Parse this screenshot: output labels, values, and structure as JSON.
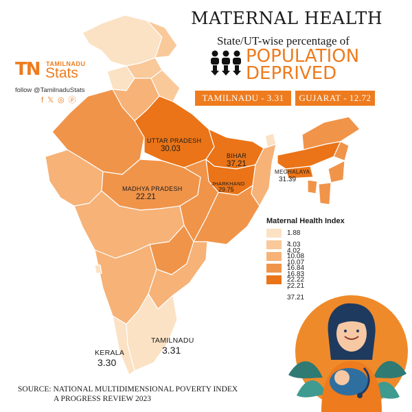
{
  "header": {
    "title": "MATERNAL HEALTH",
    "subtitle": "State/UT-wise percentage of",
    "headline_line1": "POPULATION",
    "headline_line2": "DEPRIVED"
  },
  "highlights": [
    "TAMILNADU - 3.31",
    "GUJARAT - 12.72"
  ],
  "brand": {
    "mark": "TN",
    "name_top": "TAMILNADU",
    "name_bottom": "Stats",
    "follow": "follow @TamilnaduStats",
    "social_icons": [
      "facebook-icon",
      "x-icon",
      "instagram-icon",
      "pinterest-icon"
    ]
  },
  "map_labels": [
    {
      "name": "UTTAR PRADESH",
      "value": "30.03"
    },
    {
      "name": "BIHAR",
      "value": "37.21"
    },
    {
      "name": "JHARKHAND",
      "value": "29.75"
    },
    {
      "name": "MADHYA PRADESH",
      "value": "22.21"
    },
    {
      "name": "MEGHALAYA",
      "value": "31.39"
    },
    {
      "name": "KERALA",
      "value": "3.30"
    },
    {
      "name": "TAMILNADU",
      "value": "3.31"
    }
  ],
  "legend": {
    "title": "Maternal Health Index",
    "items": [
      {
        "label": "1.88 - 4.02",
        "color": "#fbe2c4"
      },
      {
        "label": "4.03 - 10.07",
        "color": "#f9c99a"
      },
      {
        "label": "10.08 - 16.83",
        "color": "#f6b277"
      },
      {
        "label": "16.84 - 22.21",
        "color": "#f0944a"
      },
      {
        "label": "22.22 - 37.21",
        "color": "#ea7417"
      }
    ]
  },
  "colors": {
    "accent": "#ee7b1e",
    "circle": "#ef8a2a",
    "leaf": "#2f7a73"
  },
  "source": {
    "line1": "SOURCE:  NATIONAL MULTIDIMENSIONAL POVERTY INDEX",
    "line2": "A PROGRESS REVIEW 2023"
  }
}
